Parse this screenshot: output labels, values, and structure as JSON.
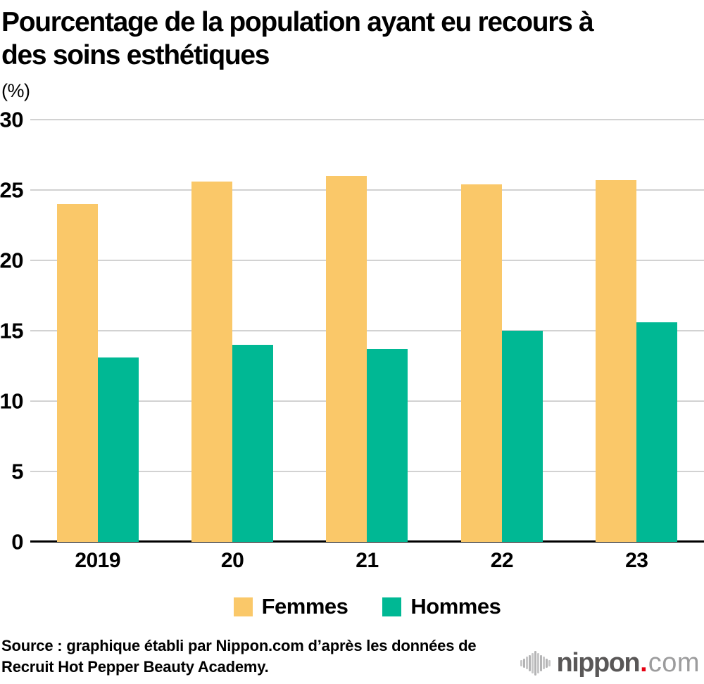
{
  "header": {
    "title_lines": [
      "Pourcentage de la population ayant eu recours à",
      "des soins esthétiques"
    ],
    "unit_label": "(%)"
  },
  "chart_data": {
    "type": "bar",
    "title": "Pourcentage de la population ayant eu recours à des soins esthétiques",
    "categories": [
      "2019",
      "20",
      "21",
      "22",
      "23"
    ],
    "series": [
      {
        "name": "Femmes",
        "color": "#FAC869",
        "values": [
          24.0,
          25.6,
          26.0,
          25.4,
          25.7
        ]
      },
      {
        "name": "Hommes",
        "color": "#00B894",
        "values": [
          13.1,
          14.0,
          13.7,
          15.0,
          15.6
        ]
      }
    ],
    "xlabel": "",
    "ylabel": "(%)",
    "ylim": [
      0,
      30
    ],
    "yticks": [
      0,
      5,
      10,
      15,
      20,
      25,
      30
    ],
    "grid": true,
    "legend_position": "bottom",
    "grid_color": "#D2D2D2",
    "axis_color": "#000000"
  },
  "footer": {
    "source_lines": [
      "Source : graphique établi par Nippon.com d’après les données de",
      "Recruit Hot Pepper Beauty Academy."
    ],
    "logo": {
      "word": "nippon",
      "dot": ".",
      "tld": "com",
      "word_color": "#595757",
      "dot_color": "#E60012",
      "tld_color": "#9C9C9D",
      "bars_color": "#B4B4B5"
    }
  }
}
